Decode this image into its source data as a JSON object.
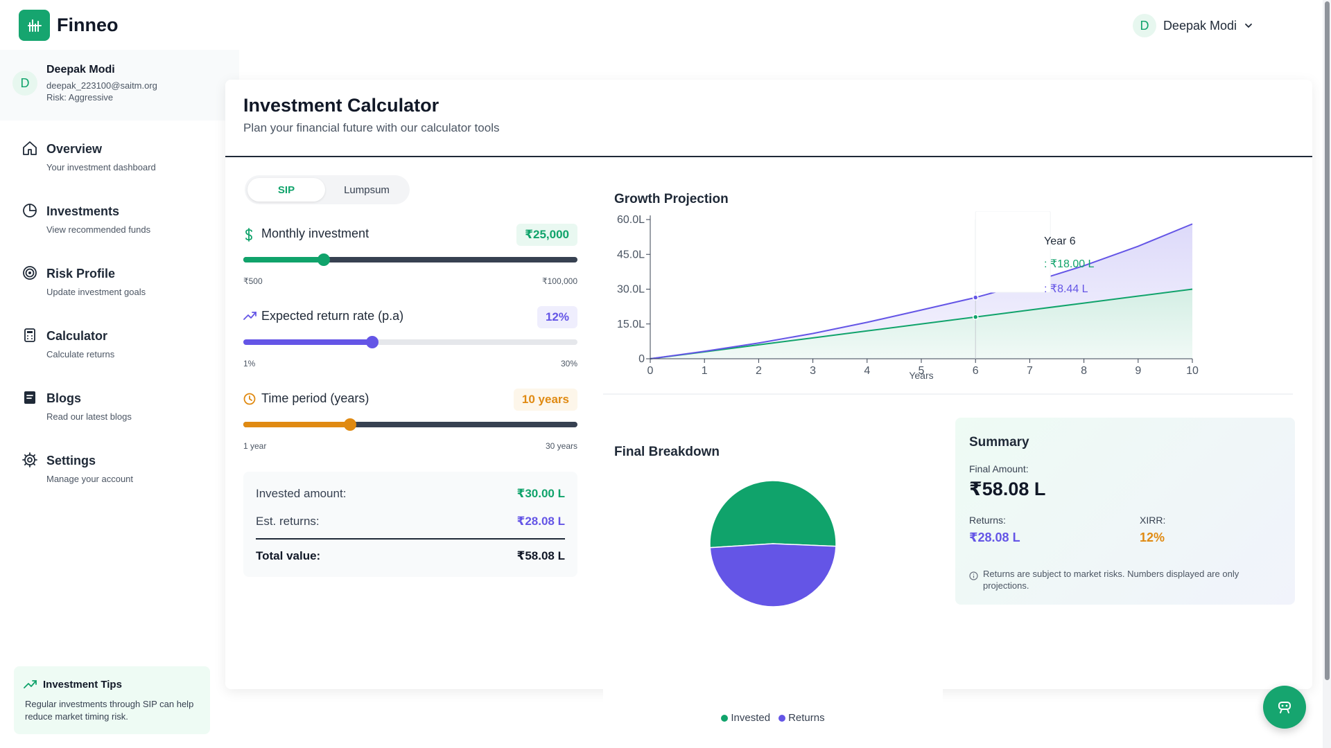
{
  "app": {
    "name": "Finneo"
  },
  "header": {
    "user_initial": "D",
    "user_name": "Deepak Modi"
  },
  "profile": {
    "initial": "D",
    "name": "Deepak Modi",
    "email": "deepak_223100@saitm.org",
    "risk": "Risk: Aggressive"
  },
  "nav": {
    "items": [
      {
        "label": "Overview",
        "sub": "Your investment dashboard",
        "icon": "home-icon"
      },
      {
        "label": "Investments",
        "sub": "View recommended funds",
        "icon": "pie-chart-icon"
      },
      {
        "label": "Risk Profile",
        "sub": "Update investment goals",
        "icon": "target-icon"
      },
      {
        "label": "Calculator",
        "sub": "Calculate returns",
        "icon": "calculator-icon"
      },
      {
        "label": "Blogs",
        "sub": "Read our latest blogs",
        "icon": "blog-icon"
      },
      {
        "label": "Settings",
        "sub": "Manage your account",
        "icon": "gear-icon"
      }
    ]
  },
  "tips": {
    "title": "Investment Tips",
    "body": "Regular investments through SIP can help reduce market timing risk."
  },
  "page": {
    "title": "Investment Calculator",
    "subtitle": "Plan your financial future with our calculator tools"
  },
  "tabs": {
    "sip": "SIP",
    "lumpsum": "Lumpsum",
    "active": "SIP"
  },
  "sliders": {
    "monthly": {
      "label": "Monthly investment",
      "value": "₹25,000",
      "min": "₹500",
      "max": "₹100,000",
      "level": 0.24,
      "color": "#10a36b",
      "bg": "#e9f8f1"
    },
    "rate": {
      "label": "Expected return rate (p.a)",
      "value": "12%",
      "min": "1%",
      "max": "30%",
      "level": 0.385,
      "color": "#6455e6",
      "bg": "#efeefd"
    },
    "period": {
      "label": "Time period (years)",
      "value": "10 years",
      "min": "1 year",
      "max": "30 years",
      "level": 0.32,
      "color": "#e08a12",
      "bg": "#fdf6ea"
    }
  },
  "results": {
    "invested_label": "Invested amount:",
    "invested_value": "₹30.00 L",
    "returns_label": "Est. returns:",
    "returns_value": "₹28.08 L",
    "total_label": "Total value:",
    "total_value": "₹58.08 L"
  },
  "growth": {
    "title": "Growth Projection",
    "tooltip": {
      "title": "Year 6",
      "total": ": ₹18.00 L",
      "returns": ": ₹8.44 L"
    }
  },
  "breakdown": {
    "title": "Final Breakdown"
  },
  "summary": {
    "title": "Summary",
    "final_label": "Final Amount:",
    "final_value": "₹58.08 L",
    "returns_label": "Returns:",
    "returns_value": "₹28.08 L",
    "xirr_label": "XIRR:",
    "xirr_value": "12%",
    "note": "Returns are subject to market risks. Numbers displayed are only projections."
  },
  "colors": {
    "brand": "#16a56f",
    "invested": "#10a36b",
    "returns": "#6455e6",
    "period": "#e08a12"
  },
  "chart_data": [
    {
      "type": "area",
      "title": "Growth Projection",
      "xlabel": "Years",
      "ylabel": "",
      "x": [
        0,
        1,
        2,
        3,
        4,
        5,
        6,
        7,
        8,
        9,
        10
      ],
      "x_ticks": [
        "0",
        "1",
        "2",
        "3",
        "4",
        "5",
        "6",
        "7",
        "8",
        "9",
        "10"
      ],
      "y_ticks": [
        "0",
        "15.0L",
        "30.0L",
        "45.0L",
        "60.0L"
      ],
      "ylim": [
        0,
        60
      ],
      "series": [
        {
          "values": [
            0,
            3,
            6,
            9,
            12,
            15,
            18,
            21,
            24,
            27,
            30
          ],
          "color": "#10a36b"
        },
        {
          "values": [
            0,
            3.2,
            6.8,
            10.9,
            15.7,
            21.0,
            26.4,
            32.8,
            40.1,
            48.5,
            58.1
          ],
          "color": "#6455e6"
        }
      ],
      "grid": false
    },
    {
      "type": "pie",
      "title": "Final Breakdown",
      "labels": [
        "Invested",
        "Returns"
      ],
      "values": [
        30.0,
        28.08
      ],
      "colors": [
        "#10a36b",
        "#6455e6"
      ],
      "legend": "bottom"
    }
  ]
}
